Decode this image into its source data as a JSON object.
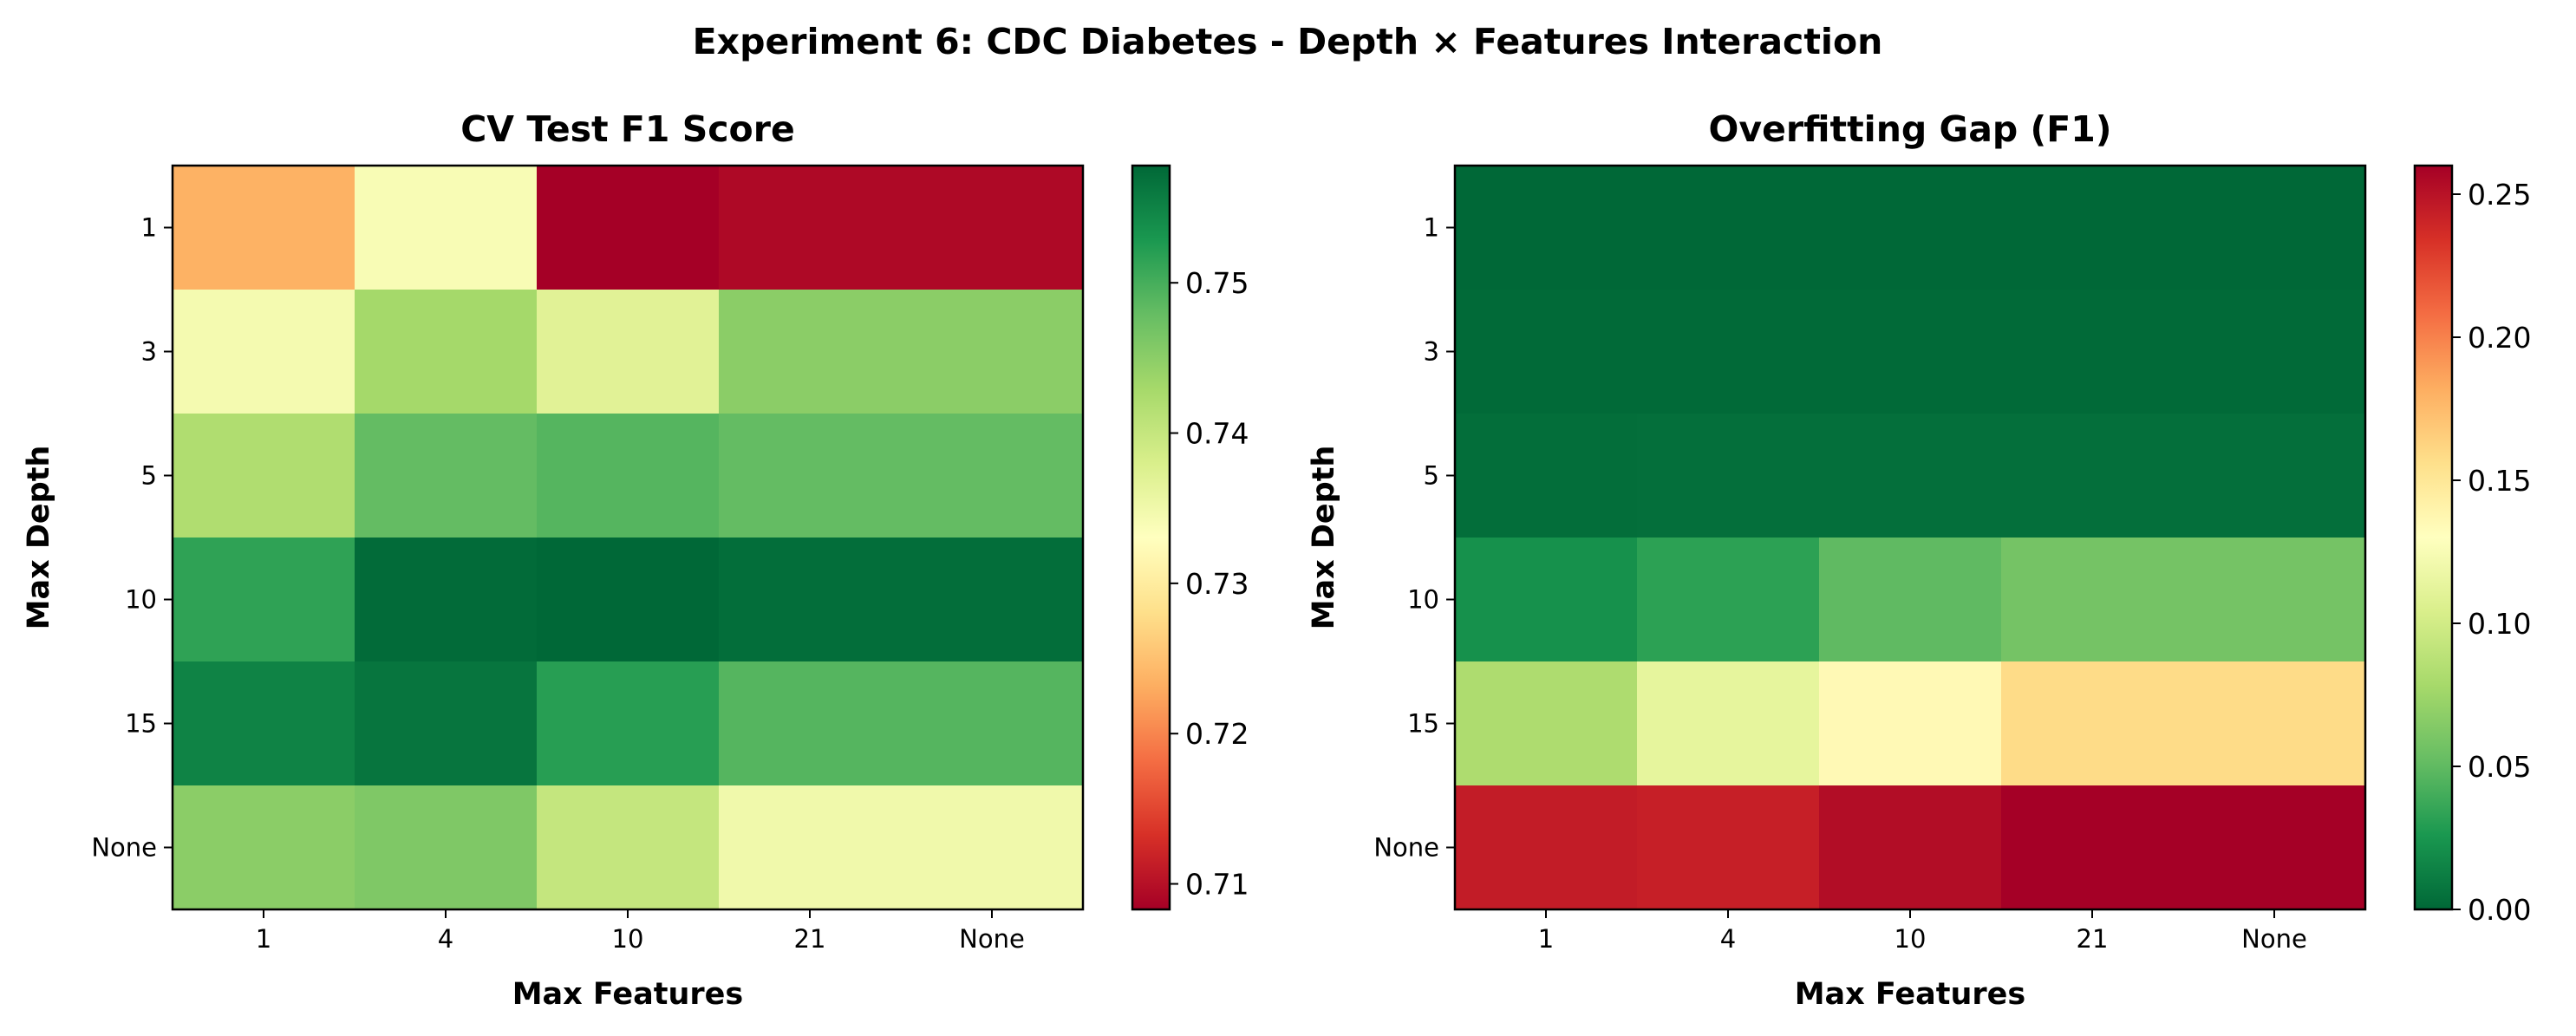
{
  "title": "Experiment 6: CDC Diabetes - Depth × Features Interaction",
  "chart_data": [
    {
      "type": "heatmap",
      "title": "CV Test F1 Score",
      "xlabel": "Max Features",
      "ylabel": "Max Depth",
      "x_categories": [
        "1",
        "4",
        "10",
        "21",
        "None"
      ],
      "y_categories": [
        "1",
        "3",
        "5",
        "10",
        "15",
        "None"
      ],
      "values": [
        [
          0.7235,
          0.734,
          0.7083,
          0.7092,
          0.7092
        ],
        [
          0.7345,
          0.743,
          0.737,
          0.745,
          0.745
        ],
        [
          0.742,
          0.748,
          0.749,
          0.748,
          0.748
        ],
        [
          0.7515,
          0.7575,
          0.7578,
          0.7572,
          0.7572
        ],
        [
          0.755,
          0.7565,
          0.752,
          0.749,
          0.749
        ],
        [
          0.745,
          0.746,
          0.74,
          0.735,
          0.735
        ]
      ],
      "colormap": "RdYlGn",
      "colorbar": {
        "min": 0.7083,
        "max": 0.7578,
        "ticks": [
          "0.71",
          "0.72",
          "0.73",
          "0.74",
          "0.75"
        ]
      }
    },
    {
      "type": "heatmap",
      "title": "Overfitting Gap (F1)",
      "xlabel": "Max Features",
      "ylabel": "Max Depth",
      "x_categories": [
        "1",
        "4",
        "10",
        "21",
        "None"
      ],
      "y_categories": [
        "1",
        "3",
        "5",
        "10",
        "15",
        "None"
      ],
      "values": [
        [
          0.0,
          0.0,
          0.0,
          0.0,
          0.0
        ],
        [
          0.001,
          0.001,
          0.001,
          0.001,
          0.001
        ],
        [
          0.003,
          0.004,
          0.004,
          0.004,
          0.004
        ],
        [
          0.022,
          0.032,
          0.05,
          0.058,
          0.058
        ],
        [
          0.082,
          0.113,
          0.135,
          0.158,
          0.158
        ],
        [
          0.245,
          0.243,
          0.253,
          0.26,
          0.26
        ]
      ],
      "colormap": "RdYlGn_r",
      "colorbar": {
        "min": 0.0,
        "max": 0.26,
        "ticks": [
          "0.00",
          "0.05",
          "0.10",
          "0.15",
          "0.20",
          "0.25"
        ]
      }
    }
  ]
}
